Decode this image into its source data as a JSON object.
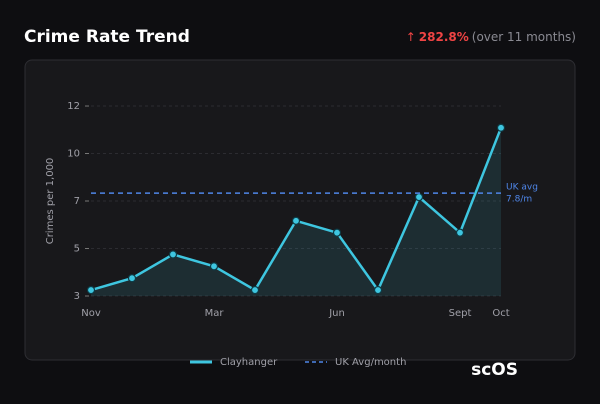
{
  "chart_data": {
    "type": "line",
    "title": "Crime Rate Trend",
    "change": {
      "arrow": "↑",
      "value_label": "282.8%",
      "note": "(over 11 months)"
    },
    "y_label": "Crimes per 1,000",
    "categories": [
      "Nov",
      null,
      null,
      "Mar",
      null,
      null,
      "Jun",
      null,
      null,
      "Sept",
      "Oct"
    ],
    "series": [
      {
        "name": "Clayhanger",
        "color": "#3ec6e0",
        "values": [
          2.9,
          3.5,
          4.7,
          4.1,
          2.9,
          6.4,
          5.8,
          2.9,
          7.6,
          5.8,
          11.1
        ]
      }
    ],
    "reference": {
      "name": "UK Avg/month",
      "color": "#4f86e8",
      "value": 7.8,
      "label": "UK avg",
      "value_label": "7.8/m"
    },
    "ylim": [
      2.6,
      12.6
    ],
    "yticks": [
      {
        "value": 2.6,
        "label": "3"
      },
      5,
      {
        "value": 7.4,
        "label": "7"
      },
      {
        "value": 9.8,
        "label": "10"
      },
      {
        "value": 12.2,
        "label": "12"
      }
    ],
    "grid": true,
    "logo": "scOS"
  }
}
